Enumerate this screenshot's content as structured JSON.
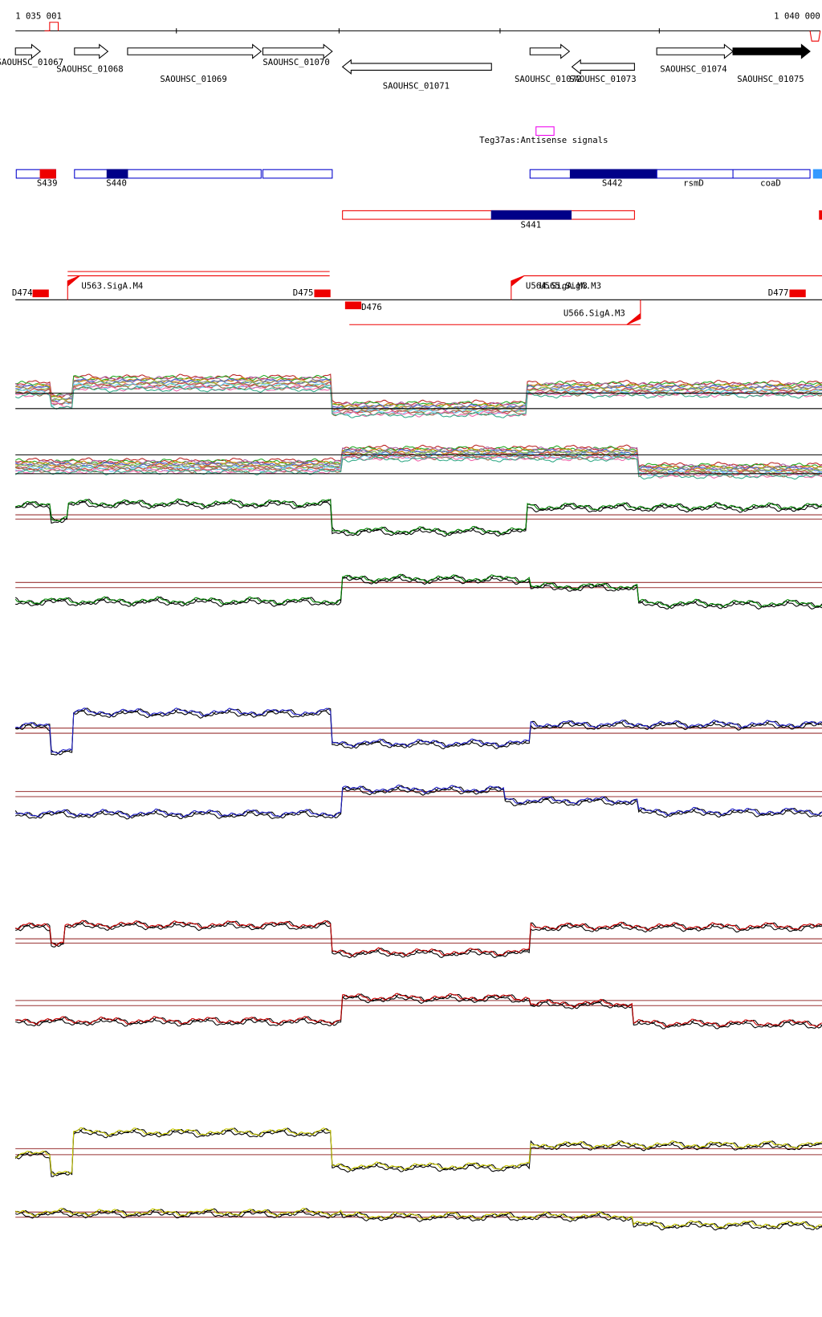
{
  "ruler": {
    "start": "1 035 001",
    "end": "1 040 000"
  },
  "genes": [
    "SAOUHSC_01067",
    "SAOUHSC_01068",
    "SAOUHSC_01069",
    "SAOUHSC_01070",
    "SAOUHSC_01071",
    "SAOUHSC_01072",
    "SAOUHSC_01073",
    "SAOUHSC_01074",
    "SAOUHSC_01075"
  ],
  "antisense": "Teg37as:Antisense signals",
  "segments": [
    "S439",
    "S440",
    "S442",
    "rsmD",
    "coaD",
    "S441"
  ],
  "promoters": [
    "D474",
    "U563.SigA.M4",
    "D475",
    "D476",
    "U564.SigA.M3",
    "U565.SigA.M3",
    "U566.SigA.M3",
    "D477"
  ]
}
